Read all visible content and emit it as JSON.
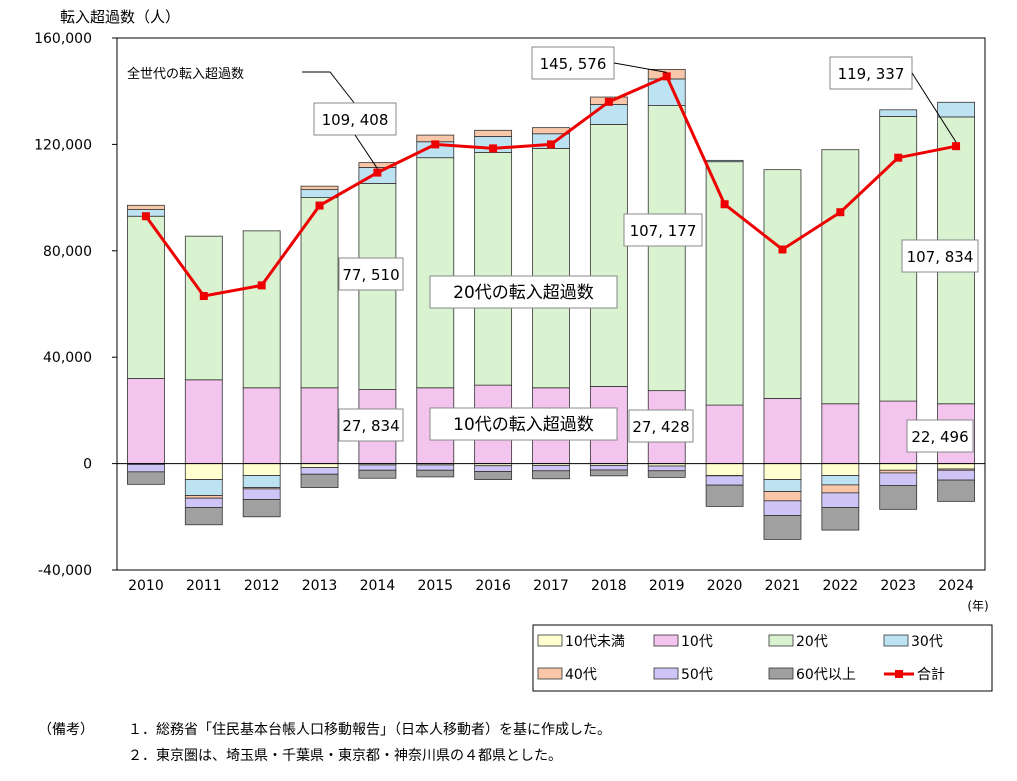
{
  "chart_data": {
    "type": "bar",
    "title": "",
    "ylabel": "転入超過数（人）",
    "xlabel": "",
    "x_unit": "(年)",
    "ylim": [
      -40000,
      160000
    ],
    "yticks": [
      "-40,000",
      "0",
      "40,000",
      "80,000",
      "120,000",
      "160,000"
    ],
    "ytick_values": [
      -40000,
      0,
      40000,
      80000,
      120000,
      160000
    ],
    "categories": [
      "2010",
      "2011",
      "2012",
      "2013",
      "2014",
      "2015",
      "2016",
      "2017",
      "2018",
      "2019",
      "2020",
      "2021",
      "2022",
      "2023",
      "2024"
    ],
    "stacked": true,
    "series": [
      {
        "name": "10代未満",
        "color": "#ffffd0",
        "values": [
          -300,
          -6000,
          -4500,
          -1500,
          -500,
          -500,
          -800,
          -700,
          -700,
          -900,
          -4500,
          -6000,
          -4500,
          -2500,
          -2000
        ]
      },
      {
        "name": "10代",
        "color": "#f2c4ee",
        "values": [
          32000,
          31500,
          28500,
          28500,
          27834,
          28500,
          29500,
          28500,
          29000,
          27428,
          22000,
          24500,
          22500,
          23500,
          22496
        ]
      },
      {
        "name": "20代",
        "color": "#d9f2d0",
        "values": [
          61000,
          54000,
          59000,
          71500,
          77510,
          86500,
          87500,
          90000,
          98500,
          107177,
          91500,
          86000,
          95500,
          107000,
          107834
        ]
      },
      {
        "name": "30代",
        "color": "#bde3f2",
        "values": [
          2500,
          -6000,
          -4500,
          3000,
          6000,
          6000,
          6000,
          5500,
          7500,
          10000,
          500,
          -4500,
          -3500,
          2500,
          5500
        ]
      },
      {
        "name": "40代",
        "color": "#f8c6a8",
        "values": [
          1600,
          -1000,
          -500,
          1300,
          1800,
          2500,
          2300,
          2300,
          2800,
          3600,
          -100,
          -3500,
          -3000,
          -1000,
          -500
        ]
      },
      {
        "name": "50代",
        "color": "#cfc4f6",
        "values": [
          -2800,
          -3500,
          -4000,
          -2500,
          -2000,
          -2000,
          -2200,
          -2000,
          -1700,
          -1800,
          -3500,
          -5500,
          -5500,
          -4700,
          -3700
        ]
      },
      {
        "name": "60代以上",
        "color": "#a0a0a0",
        "values": [
          -4700,
          -6500,
          -6500,
          -5000,
          -3000,
          -2500,
          -3000,
          -3000,
          -2200,
          -2500,
          -8000,
          -9000,
          -8500,
          -9000,
          -8000
        ]
      }
    ],
    "total": {
      "name": "合計",
      "color": "#ee0000",
      "values": [
        93000,
        63000,
        67000,
        97000,
        109408,
        120000,
        118500,
        120000,
        136000,
        145576,
        97500,
        80500,
        94500,
        115000,
        119337
      ]
    },
    "legend_position": "bottom-right",
    "legend_items": [
      {
        "name": "10代未満",
        "color": "#ffffd0",
        "kind": "box"
      },
      {
        "name": "10代",
        "color": "#f2c4ee",
        "kind": "box"
      },
      {
        "name": "20代",
        "color": "#d9f2d0",
        "kind": "box"
      },
      {
        "name": "30代",
        "color": "#bde3f2",
        "kind": "box"
      },
      {
        "name": "40代",
        "color": "#f8c6a8",
        "kind": "box"
      },
      {
        "name": "50代",
        "color": "#cfc4f6",
        "kind": "box"
      },
      {
        "name": "60代以上",
        "color": "#a0a0a0",
        "kind": "box"
      },
      {
        "name": "合計",
        "color": "#ee0000",
        "kind": "line"
      }
    ],
    "annotations": {
      "total_series_label": "全世代の転入超過数",
      "twenties_label": "20代の転入超過数",
      "teens_label": "10代の転入超過数",
      "callouts": [
        {
          "text": "109, 408",
          "year": "2014",
          "target": "total"
        },
        {
          "text": "145, 576",
          "year": "2019",
          "target": "total"
        },
        {
          "text": "119, 337",
          "year": "2024",
          "target": "total"
        },
        {
          "text": "77, 510",
          "year": "2014",
          "target": "20代"
        },
        {
          "text": "107, 177",
          "year": "2019",
          "target": "20代"
        },
        {
          "text": "107, 834",
          "year": "2024",
          "target": "20代"
        },
        {
          "text": "27, 834",
          "year": "2014",
          "target": "10代"
        },
        {
          "text": "27, 428",
          "year": "2019",
          "target": "10代"
        },
        {
          "text": "22, 496",
          "year": "2024",
          "target": "10代"
        }
      ]
    }
  },
  "notes": {
    "heading": "（備考）",
    "items": [
      "１．総務省「住民基本台帳人口移動報告」（日本人移動者）を基に作成した。",
      "２．東京圏は、埼玉県・千葉県・東京都・神奈川県の４都県とした。"
    ]
  }
}
